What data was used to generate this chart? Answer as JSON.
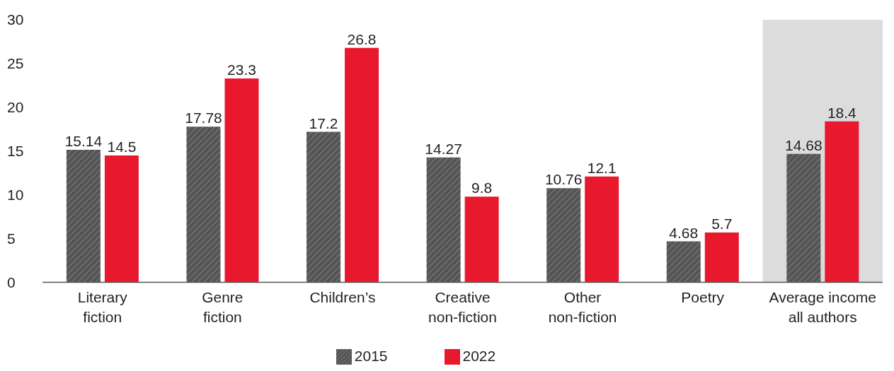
{
  "chart_data": {
    "type": "bar",
    "categories": [
      "Literary fiction",
      "Genre fiction",
      "Children’s",
      "Creative non-fiction",
      "Other non-fiction",
      "Poetry",
      "Average income all authors"
    ],
    "series": [
      {
        "name": "2015",
        "color": "#555555",
        "values": [
          15.14,
          17.78,
          17.2,
          14.27,
          10.76,
          4.68,
          14.68
        ]
      },
      {
        "name": "2022",
        "color": "#e8192c",
        "values": [
          14.5,
          23.3,
          26.8,
          9.8,
          12.1,
          5.7,
          18.4
        ]
      }
    ],
    "ylim": [
      0,
      30
    ],
    "yticks": [
      0,
      5,
      10,
      15,
      20,
      25,
      30
    ],
    "bands": [
      {
        "axis": "x",
        "from": "Average income all authors",
        "to": "Average income all authors",
        "color": "#dcdcdc"
      }
    ],
    "data_labels": true,
    "grid": false,
    "legend": "bottom"
  }
}
